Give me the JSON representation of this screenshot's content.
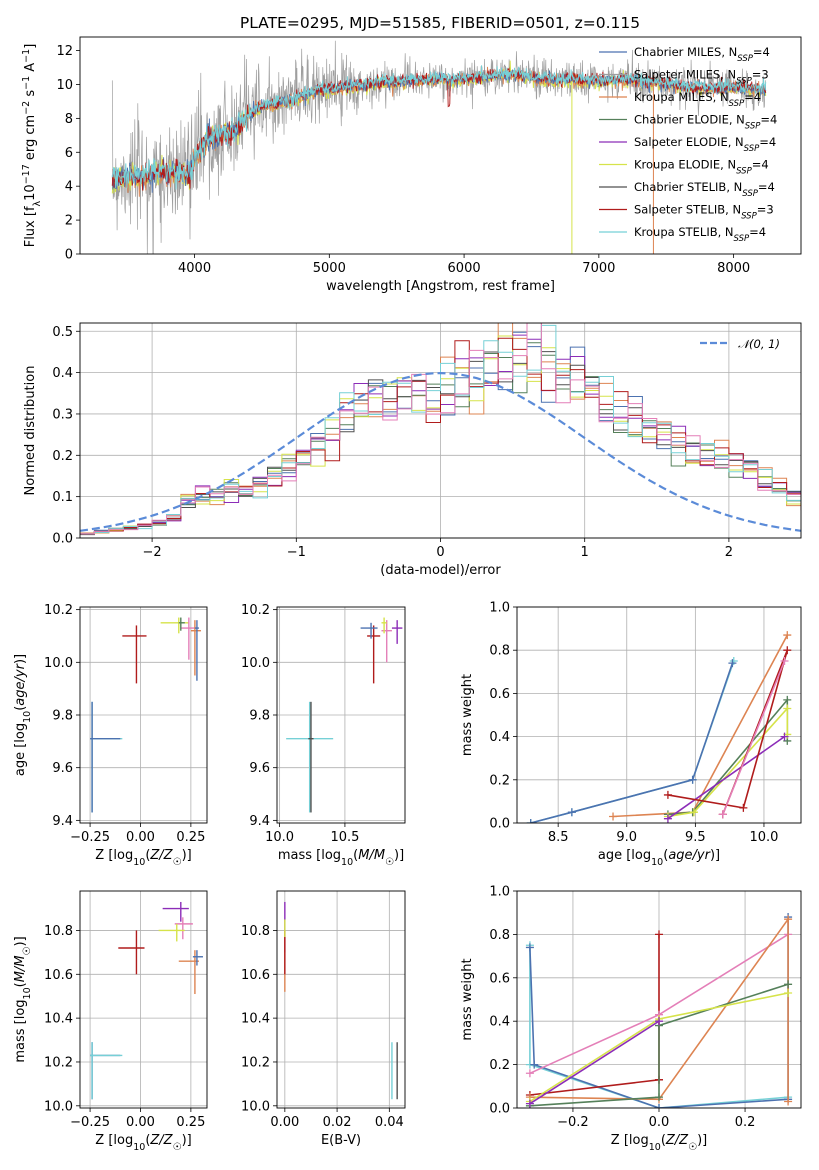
{
  "figure": {
    "title": "PLATE=0295, MJD=51585, FIBERID=0501, z=0.115"
  },
  "palette": {
    "Chabrier MILES": "#4c72b0",
    "Salpeter MILES": "#9e9e9e",
    "Kroupa MILES": "#dd8452",
    "Chabrier ELODIE": "#55805a",
    "Salpeter ELODIE": "#8c2db8",
    "Kroupa ELODIE": "#d6e34a",
    "Chabrier STELIB": "#505050",
    "Salpeter STELIB": "#b01c1c",
    "Kroupa STELIB": "#76d0d6",
    "gaussian": "#5b8bd8",
    "pink": "#e47fb8"
  },
  "chart_data": [
    {
      "id": "spectrum",
      "type": "line",
      "xlabel": "wavelength [Angstrom, rest frame]",
      "ylabel": "Flux [f",
      "ylabel_full": "Flux [fλ10⁻¹⁷ erg cm⁻² s⁻¹ A⁻¹]",
      "xlim": [
        3150,
        8500
      ],
      "ylim": [
        0,
        12.8
      ],
      "xticks": [
        4000,
        5000,
        6000,
        7000,
        8000
      ],
      "yticks": [
        0,
        2,
        4,
        6,
        8,
        10,
        12
      ],
      "grid": false,
      "legend_position": "top-right",
      "legend": [
        {
          "label": "Chabrier MILES, N_SSP=4",
          "text": "Chabrier MILES, N",
          "sub": "SSP",
          "tail": "=4"
        },
        {
          "label": "Salpeter MILES, N_SSP=3",
          "text": "Salpeter MILES, N",
          "sub": "SSP",
          "tail": "=3"
        },
        {
          "label": "Kroupa MILES, N_SSP=4",
          "text": "Kroupa MILES, N",
          "sub": "SSP",
          "tail": "=4"
        },
        {
          "label": "Chabrier ELODIE, N_SSP=4",
          "text": "Chabrier ELODIE, N",
          "sub": "SSP",
          "tail": "=4"
        },
        {
          "label": "Salpeter ELODIE, N_SSP=4",
          "text": "Salpeter ELODIE, N",
          "sub": "SSP",
          "tail": "=4"
        },
        {
          "label": "Kroupa ELODIE, N_SSP=4",
          "text": "Kroupa ELODIE, N",
          "sub": "SSP",
          "tail": "=4"
        },
        {
          "label": "Chabrier STELIB, N_SSP=4",
          "text": "Chabrier STELIB, N",
          "sub": "SSP",
          "tail": "=4"
        },
        {
          "label": "Salpeter STELIB, N_SSP=3",
          "text": "Salpeter STELIB, N",
          "sub": "SSP",
          "tail": "=3"
        },
        {
          "label": "Kroupa STELIB, N_SSP=4",
          "text": "Kroupa STELIB, N",
          "sub": "SSP",
          "tail": "=4"
        }
      ],
      "continuum": [
        [
          3390,
          4.4
        ],
        [
          3500,
          4.6
        ],
        [
          3600,
          4.5
        ],
        [
          3700,
          4.8
        ],
        [
          3800,
          4.7
        ],
        [
          3900,
          4.8
        ],
        [
          3960,
          4.6
        ],
        [
          4000,
          5.7
        ],
        [
          4100,
          6.8
        ],
        [
          4200,
          7.1
        ],
        [
          4300,
          7.3
        ],
        [
          4400,
          8.2
        ],
        [
          4500,
          8.7
        ],
        [
          4600,
          8.9
        ],
        [
          4700,
          9.0
        ],
        [
          4800,
          9.3
        ],
        [
          4900,
          9.6
        ],
        [
          5000,
          9.7
        ],
        [
          5200,
          9.9
        ],
        [
          5400,
          10.1
        ],
        [
          5600,
          10.2
        ],
        [
          5800,
          10.3
        ],
        [
          6000,
          10.3
        ],
        [
          6200,
          10.5
        ],
        [
          6400,
          10.6
        ],
        [
          6600,
          10.3
        ],
        [
          6800,
          10.3
        ],
        [
          7000,
          10.2
        ],
        [
          7200,
          10.3
        ],
        [
          7400,
          10.1
        ],
        [
          7600,
          9.9
        ],
        [
          7800,
          9.8
        ],
        [
          8000,
          9.8
        ],
        [
          8240,
          9.7
        ]
      ],
      "data_note": "observed spectrum shown in grey, models in colour"
    },
    {
      "id": "residuals",
      "type": "histogram",
      "xlabel": "(data-model)/error",
      "ylabel": "Normed distribution",
      "xlim": [
        -2.5,
        2.5
      ],
      "ylim": [
        0,
        0.52
      ],
      "xticks": [
        -2,
        -1,
        0,
        1,
        2
      ],
      "yticks": [
        0.0,
        0.1,
        0.2,
        0.3,
        0.4,
        0.5
      ],
      "grid": true,
      "legend_position": "top-right",
      "legend": [
        {
          "label": "N(0,1)",
          "text": "𝒩(0, 1)"
        }
      ],
      "bin_width": 0.1,
      "bins_x_start": -2.5,
      "hist_values": [
        0.01,
        0.015,
        0.02,
        0.025,
        0.03,
        0.035,
        0.05,
        0.09,
        0.1,
        0.1,
        0.12,
        0.11,
        0.13,
        0.15,
        0.18,
        0.2,
        0.22,
        0.25,
        0.3,
        0.32,
        0.34,
        0.33,
        0.36,
        0.35,
        0.34,
        0.37,
        0.38,
        0.4,
        0.42,
        0.44,
        0.46,
        0.45,
        0.43,
        0.4,
        0.38,
        0.36,
        0.32,
        0.3,
        0.29,
        0.27,
        0.25,
        0.23,
        0.21,
        0.2,
        0.19,
        0.18,
        0.17,
        0.14,
        0.12,
        0.1,
        0.08,
        0.06,
        0.05,
        0.04,
        0.035,
        0.03,
        0.03,
        0.03,
        0.025,
        0.025
      ]
    },
    {
      "id": "age-vs-Z",
      "type": "scatter",
      "xlabel": "Z [log",
      "xlabel_full": "Z [log10(Z/Z☉)]",
      "ylabel": "age [log10(age/yr)]",
      "xlim": [
        -0.3,
        0.33
      ],
      "ylim": [
        9.39,
        10.21
      ],
      "xticks": [
        -0.25,
        0.0,
        0.25
      ],
      "yticks": [
        9.4,
        9.6,
        9.8,
        10.0,
        10.2
      ],
      "grid": true,
      "points": [
        {
          "x": -0.24,
          "y": 9.71,
          "xerr": [
            0.01,
            0.15
          ],
          "yerr": [
            0.28,
            0.14
          ],
          "color": "Kroupa STELIB"
        },
        {
          "x": -0.24,
          "y": 9.71,
          "xerr": [
            0.01,
            0.14
          ],
          "yerr": [
            0.28,
            0.14
          ],
          "color": "Chabrier MILES"
        },
        {
          "x": -0.02,
          "y": 10.1,
          "xerr": [
            0.07,
            0.05
          ],
          "yerr": [
            0.18,
            0.04
          ],
          "color": "Salpeter STELIB"
        },
        {
          "x": 0.19,
          "y": 10.15,
          "xerr": [
            0.09,
            0.05
          ],
          "yerr": [
            0.04,
            0.02
          ],
          "color": "Kroupa ELODIE"
        },
        {
          "x": 0.24,
          "y": 10.13,
          "xerr": [
            0.04,
            0.04
          ],
          "yerr": [
            0.12,
            0.04
          ],
          "color": "pink"
        },
        {
          "x": 0.27,
          "y": 10.12,
          "xerr": [
            0.02,
            0.03
          ],
          "yerr": [
            0.17,
            0.04
          ],
          "color": "Kroupa MILES"
        },
        {
          "x": 0.28,
          "y": 10.13,
          "xerr": [
            0.01,
            0.01
          ],
          "yerr": [
            0.2,
            0.03
          ],
          "color": "Chabrier MILES"
        },
        {
          "x": 0.2,
          "y": 10.15,
          "xerr": [
            0.01,
            0.02
          ],
          "yerr": [
            0.03,
            0.02
          ],
          "color": "Chabrier ELODIE"
        }
      ]
    },
    {
      "id": "age-vs-mass",
      "type": "scatter",
      "xlabel": "mass [log10(M/M☉)]",
      "ylabel": "",
      "xlim": [
        9.98,
        10.96
      ],
      "ylim": [
        9.39,
        10.21
      ],
      "xticks": [
        10.0,
        10.5
      ],
      "yticks": [
        9.4,
        9.6,
        9.8,
        10.0,
        10.2
      ],
      "grid": true,
      "points": [
        {
          "x": 10.23,
          "y": 9.71,
          "xerr": [
            0.18,
            0.18
          ],
          "yerr": [
            0.28,
            0.14
          ],
          "color": "Kroupa STELIB"
        },
        {
          "x": 10.24,
          "y": 9.71,
          "xerr": [
            0.02,
            0.02
          ],
          "yerr": [
            0.28,
            0.14
          ],
          "color": "Chabrier STELIB"
        },
        {
          "x": 10.72,
          "y": 10.1,
          "xerr": [
            0.05,
            0.05
          ],
          "yerr": [
            0.18,
            0.04
          ],
          "color": "Salpeter STELIB"
        },
        {
          "x": 10.7,
          "y": 10.13,
          "xerr": [
            0.08,
            0.05
          ],
          "yerr": [
            0.04,
            0.02
          ],
          "color": "Chabrier MILES"
        },
        {
          "x": 10.82,
          "y": 10.12,
          "xerr": [
            0.04,
            0.04
          ],
          "yerr": [
            0.12,
            0.04
          ],
          "color": "pink"
        },
        {
          "x": 10.9,
          "y": 10.13,
          "xerr": [
            0.04,
            0.04
          ],
          "yerr": [
            0.06,
            0.03
          ],
          "color": "Salpeter ELODIE"
        },
        {
          "x": 10.8,
          "y": 10.15,
          "xerr": [
            0.02,
            0.02
          ],
          "yerr": [
            0.04,
            0.02
          ],
          "color": "Kroupa ELODIE"
        }
      ]
    },
    {
      "id": "weight-vs-age",
      "type": "line",
      "xlabel": "age [log10(age/yr)]",
      "ylabel": "mass weight",
      "xlim": [
        8.2,
        10.27
      ],
      "ylim": [
        0,
        1.0
      ],
      "xticks": [
        8.5,
        9.0,
        9.5,
        10.0
      ],
      "yticks": [
        0.0,
        0.2,
        0.4,
        0.6,
        0.8,
        1.0
      ],
      "grid": true,
      "series": [
        {
          "color": "Kroupa STELIB",
          "x": [
            8.3,
            8.6,
            9.48,
            9.78
          ],
          "y": [
            0.0,
            0.05,
            0.2,
            0.75
          ]
        },
        {
          "color": "Chabrier MILES",
          "x": [
            8.3,
            8.6,
            9.48,
            9.77
          ],
          "y": [
            0.0,
            0.05,
            0.2,
            0.74
          ]
        },
        {
          "color": "Kroupa MILES",
          "x": [
            8.9,
            9.48,
            10.17
          ],
          "y": [
            0.03,
            0.05,
            0.87
          ]
        },
        {
          "color": "Chabrier ELODIE",
          "x": [
            9.3,
            9.48,
            10.17,
            10.17
          ],
          "y": [
            0.04,
            0.05,
            0.57,
            0.38
          ]
        },
        {
          "color": "Kroupa ELODIE",
          "x": [
            9.3,
            9.49,
            10.17,
            10.17
          ],
          "y": [
            0.03,
            0.05,
            0.53,
            0.41
          ]
        },
        {
          "color": "Salpeter ELODIE",
          "x": [
            9.3,
            10.15
          ],
          "y": [
            0.02,
            0.4
          ]
        },
        {
          "color": "Salpeter STELIB",
          "x": [
            9.3,
            9.85,
            10.17,
            9.7
          ],
          "y": [
            0.13,
            0.07,
            0.8,
            0.04
          ]
        },
        {
          "color": "pink",
          "x": [
            9.7,
            10.15
          ],
          "y": [
            0.04,
            0.75
          ]
        }
      ]
    },
    {
      "id": "mass-vs-Z",
      "type": "scatter",
      "xlabel": "Z [log10(Z/Z☉)]",
      "ylabel": "mass [log10(M/M☉)]",
      "xlim": [
        -0.3,
        0.33
      ],
      "ylim": [
        9.99,
        10.98
      ],
      "xticks": [
        -0.25,
        0.0,
        0.25
      ],
      "yticks": [
        10.0,
        10.2,
        10.4,
        10.6,
        10.8
      ],
      "grid": true,
      "points": [
        {
          "x": -0.24,
          "y": 10.23,
          "xerr": [
            0.01,
            0.14
          ],
          "yerr": [
            0.2,
            0.06
          ],
          "color": "Chabrier MILES"
        },
        {
          "x": -0.24,
          "y": 10.23,
          "xerr": [
            0.01,
            0.15
          ],
          "yerr": [
            0.2,
            0.06
          ],
          "color": "Kroupa STELIB"
        },
        {
          "x": -0.02,
          "y": 10.72,
          "xerr": [
            0.09,
            0.04
          ],
          "yerr": [
            0.12,
            0.08
          ],
          "color": "Salpeter STELIB"
        },
        {
          "x": 0.2,
          "y": 10.9,
          "xerr": [
            0.09,
            0.04
          ],
          "yerr": [
            0.06,
            0.03
          ],
          "color": "Salpeter ELODIE"
        },
        {
          "x": 0.21,
          "y": 10.83,
          "xerr": [
            0.04,
            0.05
          ],
          "yerr": [
            0.07,
            0.03
          ],
          "color": "pink"
        },
        {
          "x": 0.18,
          "y": 10.8,
          "xerr": [
            0.09,
            0.04
          ],
          "yerr": [
            0.05,
            0.03
          ],
          "color": "Kroupa ELODIE"
        },
        {
          "x": 0.27,
          "y": 10.66,
          "xerr": [
            0.08,
            0.02
          ],
          "yerr": [
            0.15,
            0.05
          ],
          "color": "Kroupa MILES"
        },
        {
          "x": 0.28,
          "y": 10.68,
          "xerr": [
            0.02,
            0.03
          ],
          "yerr": [
            0.04,
            0.03
          ],
          "color": "Chabrier MILES"
        }
      ]
    },
    {
      "id": "mass-vs-EBV",
      "type": "scatter",
      "xlabel": "E(B-V)",
      "ylabel": "",
      "xlim": [
        -0.003,
        0.046
      ],
      "ylim": [
        9.99,
        10.98
      ],
      "xticks": [
        0.0,
        0.02,
        0.04
      ],
      "yticks": [
        10.0,
        10.2,
        10.4,
        10.6,
        10.8
      ],
      "grid": true,
      "points": [
        {
          "x": 0.0,
          "y": 10.8,
          "xerr": [
            0,
            0
          ],
          "yerr": [
            0.1,
            0.13
          ],
          "color": "Salpeter ELODIE"
        },
        {
          "x": 0.0,
          "y": 10.66,
          "xerr": [
            0,
            0
          ],
          "yerr": [
            0.14,
            0.14
          ],
          "color": "Kroupa MILES"
        },
        {
          "x": 0.0,
          "y": 10.72,
          "xerr": [
            0,
            0
          ],
          "yerr": [
            0.12,
            0.08
          ],
          "color": "Salpeter STELIB"
        },
        {
          "x": 0.0,
          "y": 10.82,
          "xerr": [
            0,
            0
          ],
          "yerr": [
            0.05,
            0.03
          ],
          "color": "Kroupa ELODIE"
        },
        {
          "x": 0.041,
          "y": 10.2,
          "xerr": [
            0,
            0
          ],
          "yerr": [
            0.17,
            0.09
          ],
          "color": "Kroupa STELIB"
        },
        {
          "x": 0.043,
          "y": 10.2,
          "xerr": [
            0,
            0
          ],
          "yerr": [
            0.17,
            0.09
          ],
          "color": "Chabrier STELIB"
        }
      ]
    },
    {
      "id": "weight-vs-Z",
      "type": "line",
      "xlabel": "Z [log10(Z/Z☉)]",
      "ylabel": "mass weight",
      "xlim": [
        -0.33,
        0.33
      ],
      "ylim": [
        0,
        1.0
      ],
      "xticks": [
        -0.2,
        0.0,
        0.2
      ],
      "yticks": [
        0.0,
        0.2,
        0.4,
        0.6,
        0.8,
        1.0
      ],
      "grid": true,
      "series": [
        {
          "color": "Kroupa STELIB",
          "x": [
            -0.3,
            -0.3,
            0.0,
            0.3
          ],
          "y": [
            0.75,
            0.2,
            0.0,
            0.05
          ]
        },
        {
          "color": "Chabrier MILES",
          "x": [
            -0.3,
            -0.29,
            0.0,
            0.3,
            0.3
          ],
          "y": [
            0.74,
            0.2,
            0.0,
            0.04,
            0.88
          ]
        },
        {
          "color": "Salpeter STELIB",
          "x": [
            -0.3,
            0.0,
            0.0,
            0.0
          ],
          "y": [
            0.06,
            0.13,
            0.8,
            0.13
          ]
        },
        {
          "color": "pink",
          "x": [
            -0.3,
            0.0,
            0.3
          ],
          "y": [
            0.16,
            0.43,
            0.8
          ]
        },
        {
          "color": "Kroupa MILES",
          "x": [
            -0.3,
            0.0,
            0.3,
            0.3
          ],
          "y": [
            0.05,
            0.04,
            0.87,
            0.03
          ]
        },
        {
          "color": "Chabrier ELODIE",
          "x": [
            -0.3,
            0.0,
            0.0,
            0.3
          ],
          "y": [
            0.01,
            0.05,
            0.38,
            0.57
          ]
        },
        {
          "color": "Kroupa ELODIE",
          "x": [
            -0.3,
            0.0,
            0.3
          ],
          "y": [
            0.03,
            0.41,
            0.53
          ]
        },
        {
          "color": "Salpeter ELODIE",
          "x": [
            -0.3,
            0.0
          ],
          "y": [
            0.02,
            0.4
          ]
        }
      ]
    }
  ]
}
